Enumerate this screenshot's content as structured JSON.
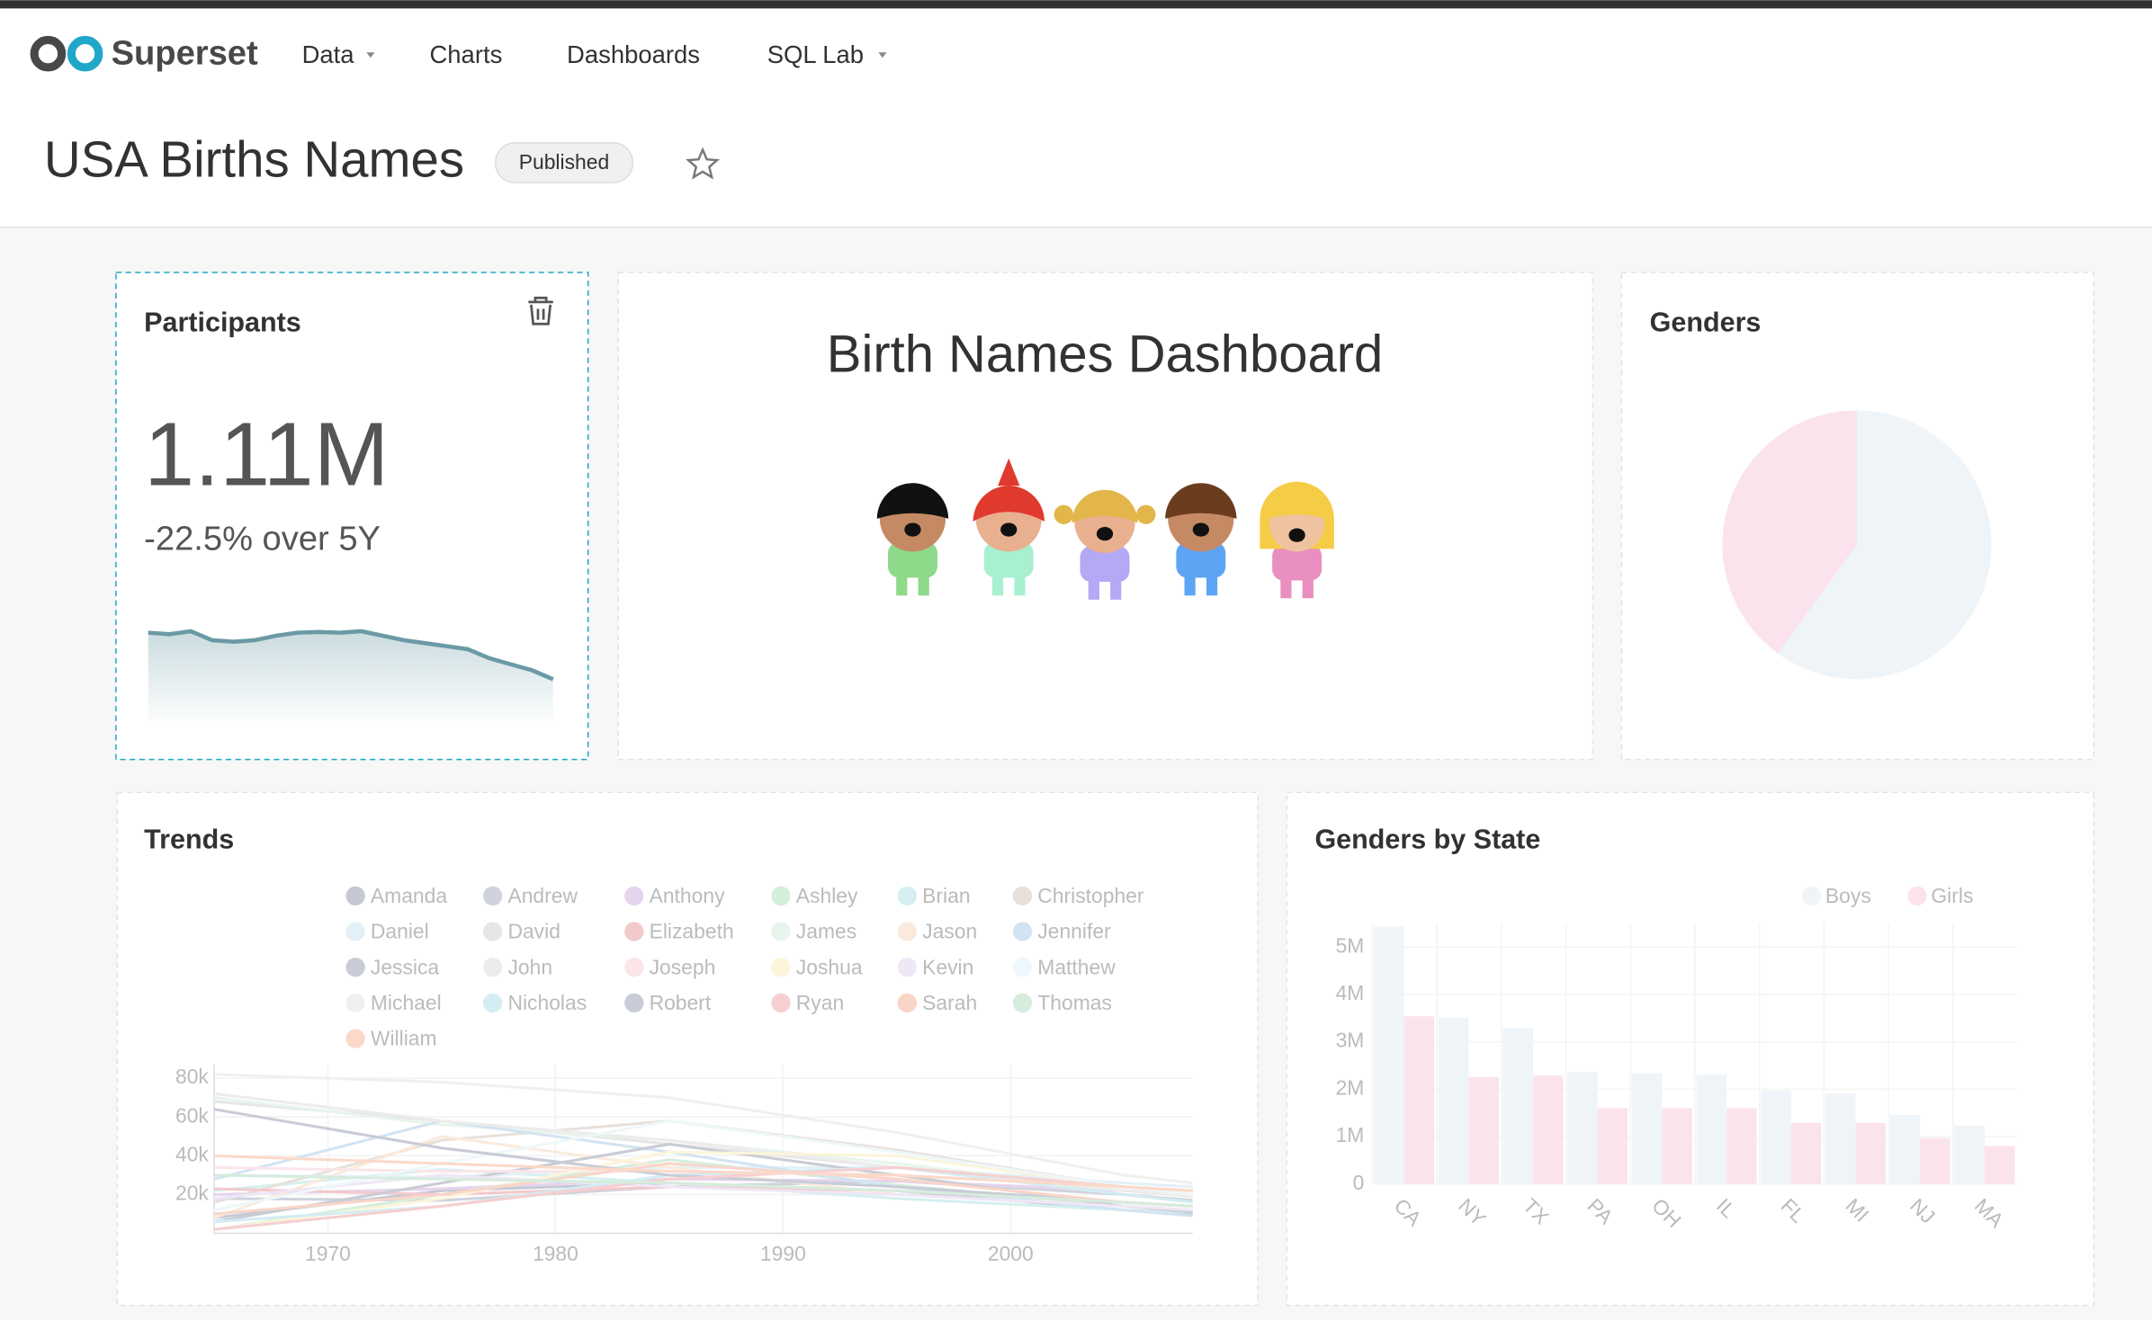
{
  "navbar": {
    "brand": "Superset",
    "menu": [
      "Data",
      "Charts",
      "Dashboards",
      "SQL Lab"
    ]
  },
  "header": {
    "title": "USA Births Names",
    "status": "Published"
  },
  "participants": {
    "title": "Participants",
    "value": {
      "value": 1110000,
      "label": "1.11M"
    },
    "subtitle": "-22.5% over 5Y",
    "chart_data": {
      "type": "area",
      "values": [
        1420000,
        1410000,
        1430000,
        1370000,
        1360000,
        1370000,
        1400000,
        1420000,
        1425000,
        1420000,
        1430000,
        1400000,
        1370000,
        1350000,
        1330000,
        1310000,
        1250000,
        1210000,
        1170000,
        1110000
      ],
      "color": "#6a9aa5"
    }
  },
  "markdown": {
    "title": "Birth Names Dashboard"
  },
  "genders": {
    "title": "Genders",
    "chart_data": {
      "type": "pie",
      "values": [
        60,
        40
      ],
      "colors": [
        "#eff4f8",
        "#fbe3ee"
      ]
    }
  },
  "trends": {
    "title": "Trends",
    "chart_data": {
      "type": "line",
      "x": [
        1965,
        1975,
        1985,
        1995,
        2005,
        2008
      ],
      "xlim": [
        1965,
        2008
      ],
      "xticks": [
        1970,
        1980,
        1990,
        2000
      ],
      "ylim": [
        0,
        87000
      ],
      "yticks": [
        {
          "value": 20000,
          "label": "20k"
        },
        {
          "value": 40000,
          "label": "40k"
        },
        {
          "value": 60000,
          "label": "60k"
        },
        {
          "value": 80000,
          "label": "80k"
        }
      ],
      "series": [
        {
          "name": "Amanda",
          "color": "#c5c9d3",
          "values": [
            8000,
            22000,
            26000,
            22000,
            12000,
            10000
          ]
        },
        {
          "name": "Andrew",
          "color": "#cfd3dc",
          "values": [
            18000,
            17000,
            24000,
            27000,
            20000,
            17000
          ]
        },
        {
          "name": "Anthony",
          "color": "#e5d4ee",
          "values": [
            20000,
            23000,
            28000,
            27000,
            22000,
            20000
          ]
        },
        {
          "name": "Ashley",
          "color": "#d6eedc",
          "values": [
            2000,
            20000,
            38000,
            25000,
            14000,
            12000
          ]
        },
        {
          "name": "Brian",
          "color": "#d5f0f0",
          "values": [
            22000,
            33000,
            26000,
            18000,
            12000,
            11000
          ]
        },
        {
          "name": "Christopher",
          "color": "#e8e0da",
          "values": [
            16000,
            48000,
            58000,
            43000,
            24000,
            20000
          ]
        },
        {
          "name": "Daniel",
          "color": "#e3f1f7",
          "values": [
            30000,
            29000,
            34000,
            34000,
            26000,
            24000
          ]
        },
        {
          "name": "David",
          "color": "#e6e6e6",
          "values": [
            68000,
            58000,
            46000,
            34000,
            22000,
            20000
          ]
        },
        {
          "name": "Elizabeth",
          "color": "#f3c9cc",
          "values": [
            23000,
            20000,
            24000,
            22000,
            16000,
            14000
          ]
        },
        {
          "name": "James",
          "color": "#e8f5ec",
          "values": [
            70000,
            56000,
            48000,
            36000,
            22000,
            19000
          ]
        },
        {
          "name": "Jason",
          "color": "#fbeadc",
          "values": [
            8000,
            50000,
            34000,
            20000,
            14000,
            12000
          ]
        },
        {
          "name": "Jennifer",
          "color": "#d2e4f3",
          "values": [
            28000,
            58000,
            42000,
            24000,
            12000,
            9000
          ]
        },
        {
          "name": "Jessica",
          "color": "#c9ccd5",
          "values": [
            6000,
            26000,
            46000,
            30000,
            14000,
            11000
          ]
        },
        {
          "name": "John",
          "color": "#ececec",
          "values": [
            72000,
            58000,
            48000,
            34000,
            22000,
            19000
          ]
        },
        {
          "name": "Joseph",
          "color": "#fbe5e8",
          "values": [
            34000,
            32000,
            32000,
            30000,
            24000,
            22000
          ]
        },
        {
          "name": "Joshua",
          "color": "#fbf5da",
          "values": [
            2000,
            18000,
            42000,
            40000,
            24000,
            20000
          ]
        },
        {
          "name": "Kevin",
          "color": "#efe6f6",
          "values": [
            18000,
            30000,
            24000,
            20000,
            14000,
            12000
          ]
        },
        {
          "name": "Matthew",
          "color": "#eef7f9",
          "values": [
            12000,
            36000,
            58000,
            42000,
            24000,
            20000
          ]
        },
        {
          "name": "Michael",
          "color": "#f0f0f0",
          "values": [
            82000,
            78000,
            70000,
            52000,
            30000,
            26000
          ]
        },
        {
          "name": "Nicholas",
          "color": "#d3edf3",
          "values": [
            6000,
            14000,
            30000,
            34000,
            20000,
            16000
          ]
        },
        {
          "name": "Robert",
          "color": "#c8ccd6",
          "values": [
            64000,
            44000,
            30000,
            24000,
            16000,
            14000
          ]
        },
        {
          "name": "Ryan",
          "color": "#f5cfd1",
          "values": [
            2000,
            14000,
            28000,
            34000,
            24000,
            22000
          ]
        },
        {
          "name": "Sarah",
          "color": "#f9d5c8",
          "values": [
            10000,
            20000,
            36000,
            28000,
            16000,
            14000
          ]
        },
        {
          "name": "Thomas",
          "color": "#d6ecdd",
          "values": [
            30000,
            28000,
            26000,
            22000,
            16000,
            14000
          ]
        },
        {
          "name": "William",
          "color": "#fbd9c9",
          "values": [
            40000,
            36000,
            32000,
            30000,
            24000,
            22000
          ]
        }
      ]
    }
  },
  "genders_by_state": {
    "title": "Genders by State",
    "chart_data": {
      "type": "bar",
      "categories": [
        "CA",
        "NY",
        "TX",
        "PA",
        "OH",
        "IL",
        "FL",
        "MI",
        "NJ",
        "MA"
      ],
      "ylim": [
        0,
        5500000
      ],
      "yticks": [
        0,
        {
          "value": 1000000,
          "label": "1M"
        },
        {
          "value": 2000000,
          "label": "2M"
        },
        {
          "value": 3000000,
          "label": "3M"
        },
        {
          "value": 4000000,
          "label": "4M"
        },
        {
          "value": 5000000,
          "label": "5M"
        }
      ],
      "series": [
        {
          "name": "Boys",
          "color": "#eff4f8",
          "values": [
            5430000,
            3510000,
            3290000,
            2370000,
            2340000,
            2310000,
            1970000,
            1910000,
            1460000,
            1230000
          ]
        },
        {
          "name": "Girls",
          "color": "#fbe3ee",
          "values": [
            3540000,
            2260000,
            2290000,
            1600000,
            1600000,
            1600000,
            1290000,
            1290000,
            970000,
            800000
          ]
        }
      ]
    }
  }
}
